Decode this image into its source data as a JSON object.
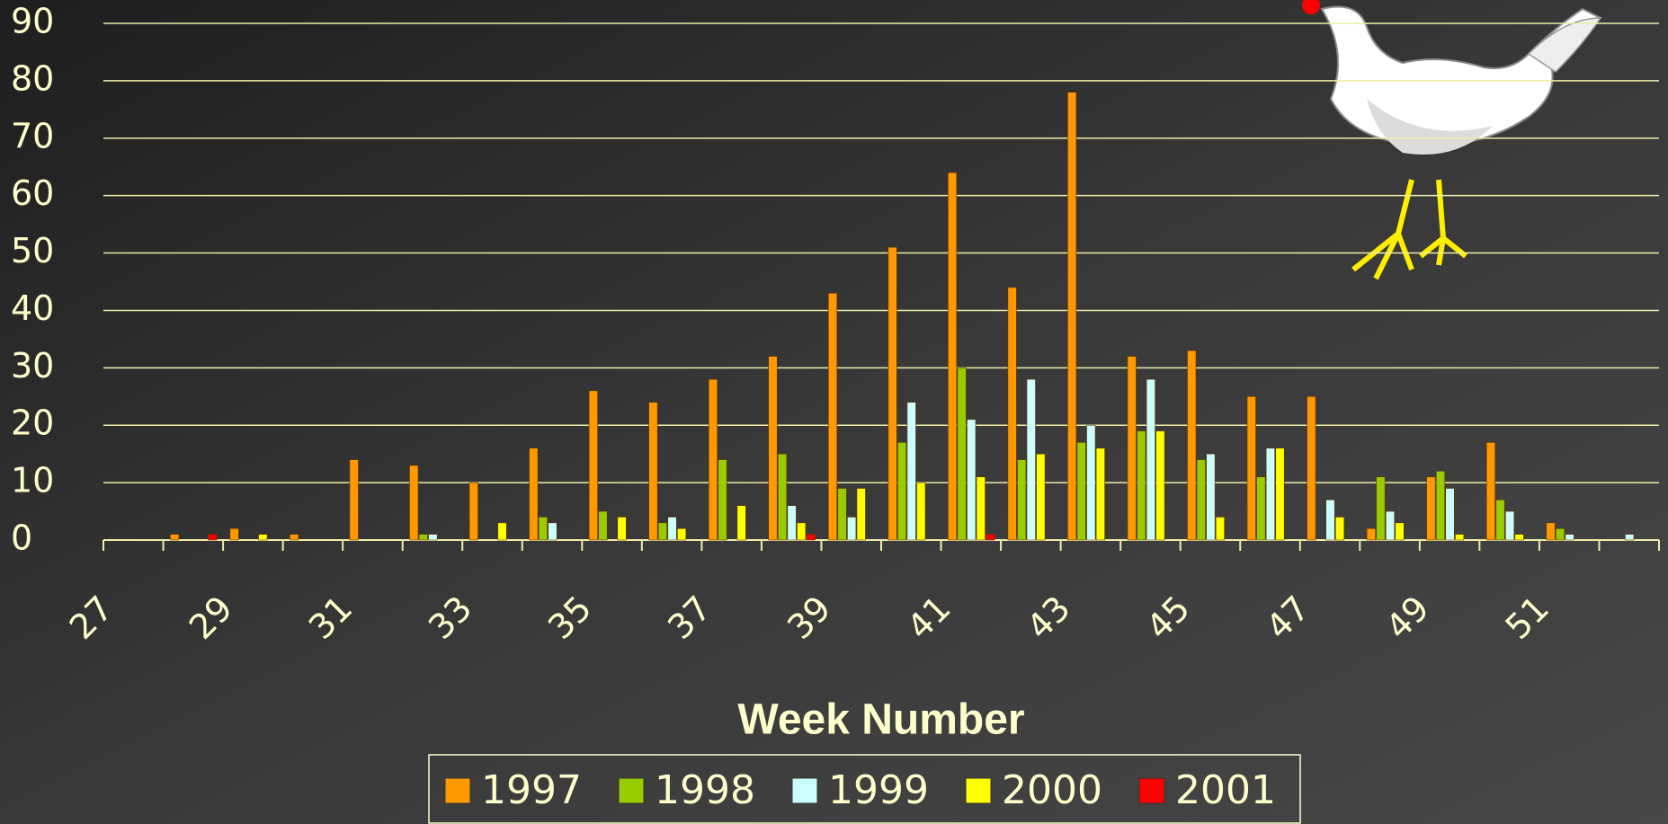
{
  "chart_data": {
    "type": "bar",
    "x_label": "Week Number",
    "categories": [
      "27",
      null,
      "29",
      null,
      "31",
      null,
      "33",
      null,
      "35",
      null,
      "37",
      null,
      "39",
      null,
      "41",
      null,
      "43",
      null,
      "45",
      null,
      "47",
      null,
      "49",
      null,
      "51",
      null
    ],
    "series": [
      {
        "name": "1997",
        "color": "#ff9900",
        "values": [
          0,
          1,
          2,
          1,
          14,
          13,
          10,
          16,
          26,
          24,
          28,
          32,
          43,
          51,
          64,
          44,
          78,
          32,
          33,
          25,
          25,
          2,
          11,
          17,
          3,
          0
        ]
      },
      {
        "name": "1998",
        "color": "#99cc00",
        "values": [
          0,
          0,
          0,
          0,
          0,
          1,
          0,
          4,
          5,
          3,
          14,
          15,
          9,
          17,
          30,
          14,
          17,
          19,
          14,
          11,
          0,
          11,
          12,
          7,
          2,
          0
        ]
      },
      {
        "name": "1999",
        "color": "#ccffff",
        "values": [
          0,
          0,
          0,
          0,
          0,
          1,
          0,
          3,
          0,
          4,
          0,
          6,
          4,
          24,
          21,
          28,
          20,
          28,
          15,
          16,
          7,
          5,
          9,
          5,
          1,
          1
        ]
      },
      {
        "name": "2000",
        "color": "#ffff00",
        "values": [
          0,
          0,
          1,
          0,
          0,
          0,
          3,
          0,
          4,
          2,
          6,
          3,
          9,
          10,
          11,
          15,
          16,
          19,
          4,
          16,
          4,
          3,
          1,
          1,
          0,
          0
        ]
      },
      {
        "name": "2001",
        "color": "#ff0000",
        "values": [
          0,
          1,
          0,
          0,
          0,
          0,
          0,
          0,
          0,
          0,
          0,
          1,
          0,
          0,
          1,
          0,
          0,
          0,
          0,
          0,
          0,
          0,
          0,
          0,
          0,
          0
        ]
      }
    ],
    "ylim": [
      0,
      90
    ],
    "yticks": [
      0,
      10,
      20,
      30,
      40,
      50,
      60,
      70,
      80,
      90
    ],
    "grid": true,
    "legend": "bottom"
  }
}
